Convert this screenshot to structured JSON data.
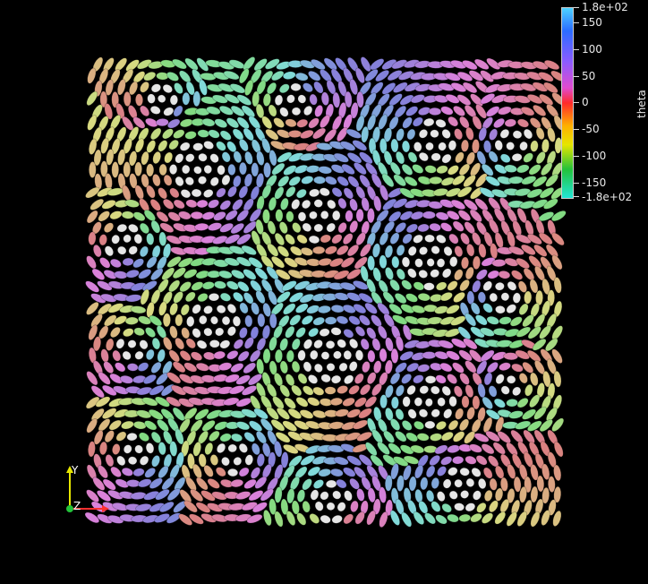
{
  "colorbar": {
    "title": "theta",
    "max_label": "1.8e+02",
    "min_label": "-1.8e+02",
    "ticks": [
      "150",
      "100",
      "50",
      "0",
      "-50",
      "-100",
      "-150"
    ]
  },
  "axes": {
    "x_label": "",
    "y_label": "Y",
    "z_label": "Z"
  }
}
